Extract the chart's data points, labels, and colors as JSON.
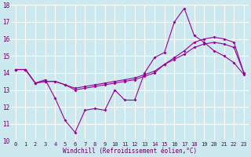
{
  "x": [
    0,
    1,
    2,
    3,
    4,
    5,
    6,
    7,
    8,
    9,
    10,
    11,
    12,
    13,
    14,
    15,
    16,
    17,
    18,
    19,
    20,
    21,
    22,
    23
  ],
  "line1": [
    14.2,
    14.2,
    13.4,
    13.6,
    12.5,
    11.2,
    10.5,
    11.8,
    11.9,
    11.8,
    13.0,
    12.4,
    12.4,
    14.0,
    14.9,
    15.2,
    17.0,
    17.8,
    16.2,
    15.8,
    15.3,
    15.0,
    14.6,
    13.9
  ],
  "line2": [
    14.2,
    14.2,
    13.4,
    13.5,
    13.5,
    13.3,
    13.0,
    13.1,
    13.2,
    13.3,
    13.4,
    13.5,
    13.6,
    13.8,
    14.0,
    14.5,
    14.9,
    15.3,
    15.8,
    16.0,
    16.1,
    16.0,
    15.8,
    14.0
  ],
  "line3": [
    14.2,
    14.2,
    13.4,
    13.5,
    13.5,
    13.3,
    13.1,
    13.2,
    13.3,
    13.4,
    13.5,
    13.6,
    13.7,
    13.9,
    14.1,
    14.5,
    14.8,
    15.1,
    15.5,
    15.7,
    15.8,
    15.7,
    15.5,
    14.0
  ],
  "line_color": "#990099",
  "bg_color": "#cce9f0",
  "grid_color": "#ffffff",
  "xlabel": "Windchill (Refroidissement éolien,°C)",
  "ylim": [
    10,
    18
  ],
  "xlim": [
    -0.5,
    23.5
  ],
  "yticks": [
    10,
    11,
    12,
    13,
    14,
    15,
    16,
    17,
    18
  ],
  "xticks": [
    0,
    1,
    2,
    3,
    4,
    5,
    6,
    7,
    8,
    9,
    10,
    11,
    12,
    13,
    14,
    15,
    16,
    17,
    18,
    19,
    20,
    21,
    22,
    23
  ],
  "tick_fontsize": 5.0,
  "xlabel_fontsize": 5.5,
  "tick_color": "#660066",
  "marker_size": 2.0,
  "line_width": 0.8
}
